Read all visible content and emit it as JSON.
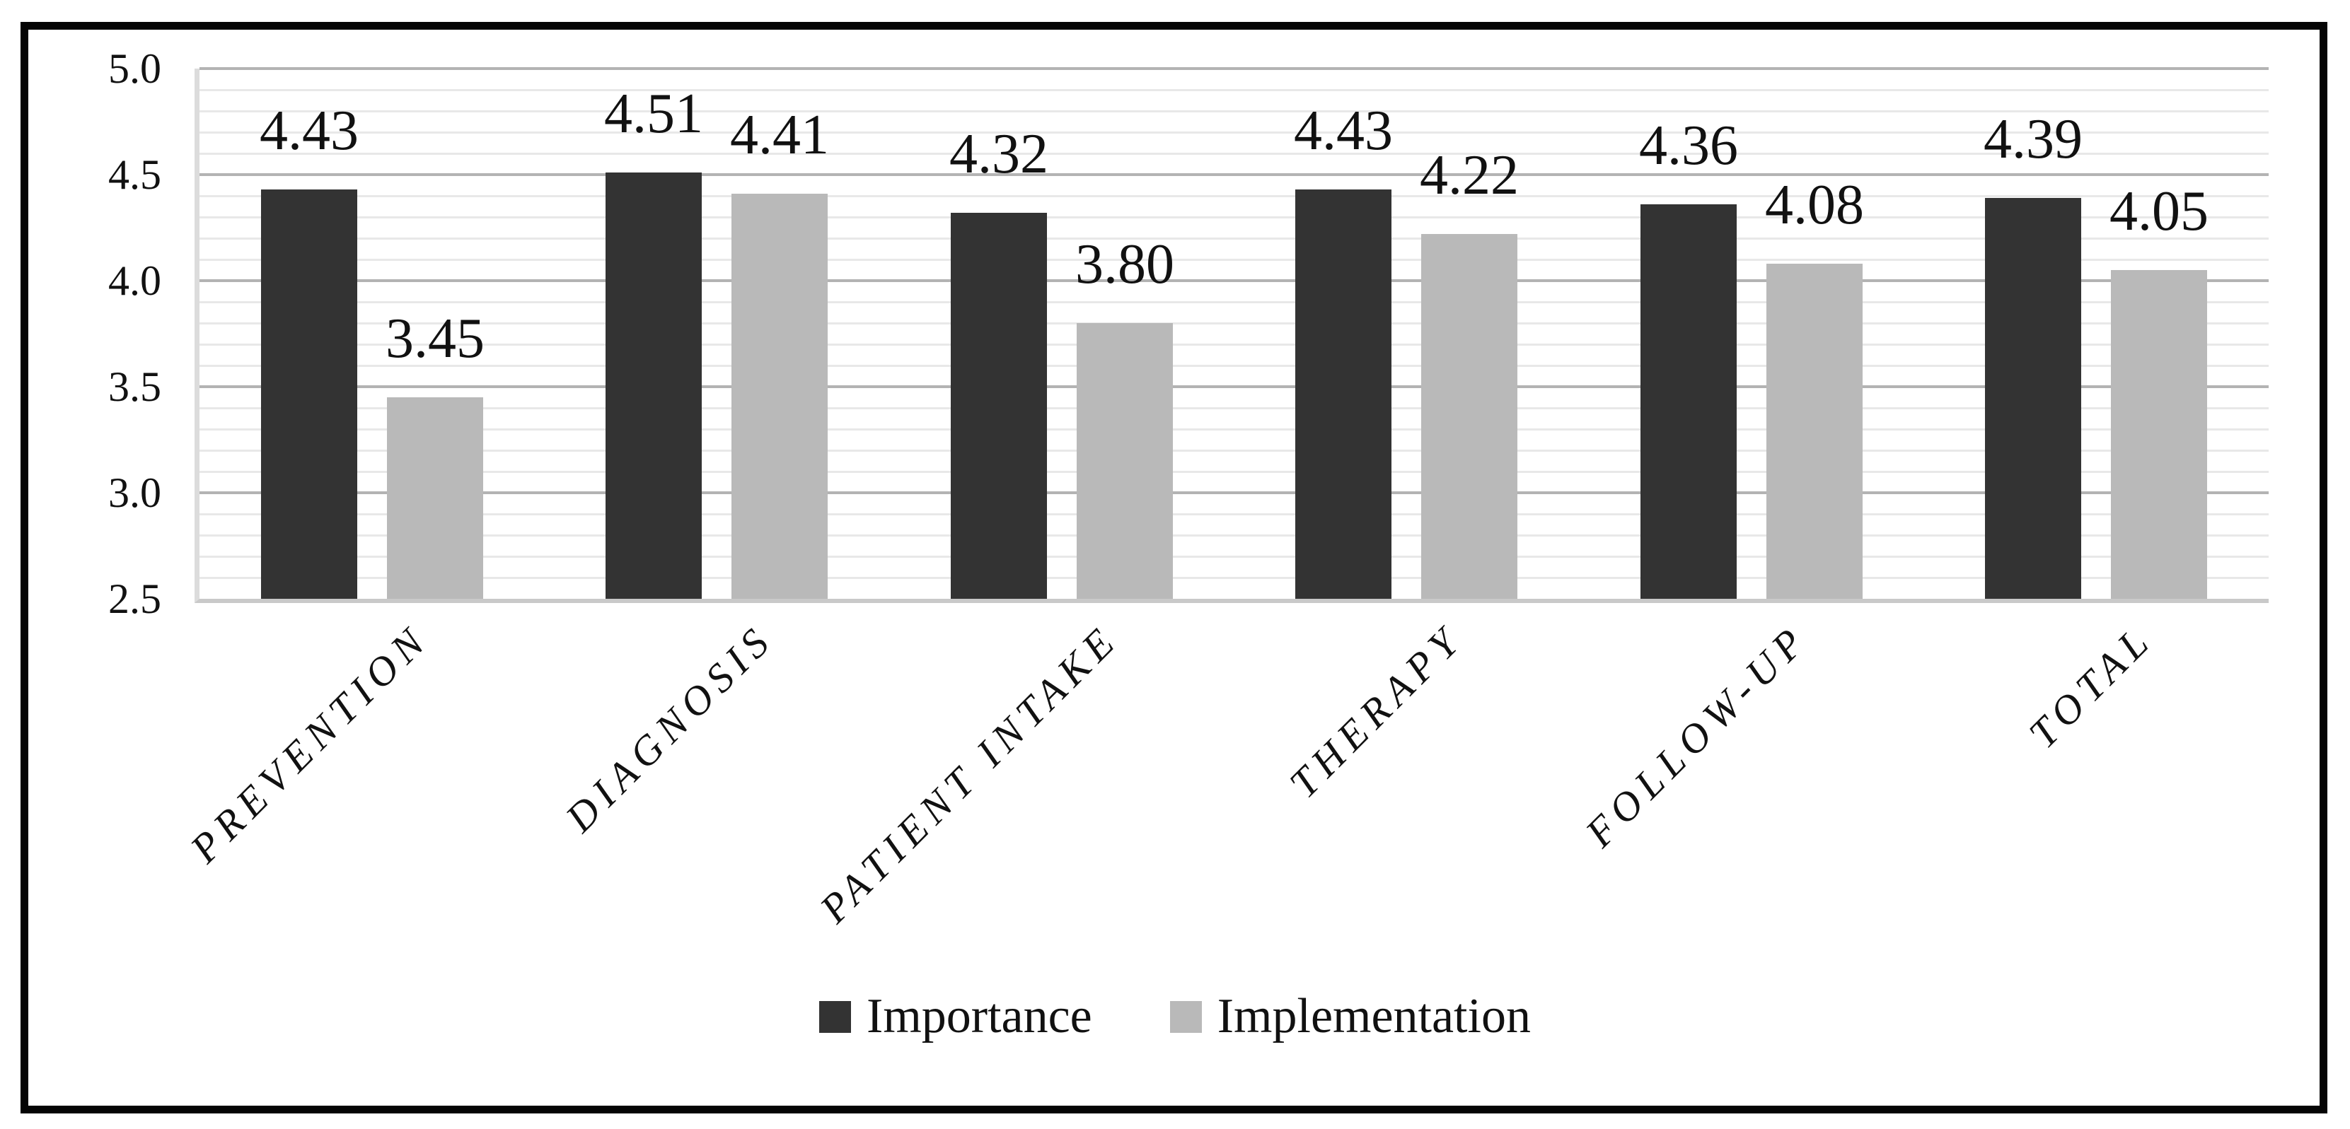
{
  "chart_data": {
    "type": "bar",
    "title": "",
    "categories": [
      "PREVENTION",
      "DIAGNOSIS",
      "PATIENT INTAKE",
      "THERAPY",
      "FOLLOW-UP",
      "TOTAL"
    ],
    "series": [
      {
        "name": "Importance",
        "color": "#333333",
        "values": [
          4.43,
          4.51,
          4.32,
          4.43,
          4.36,
          4.39
        ],
        "labels": [
          "4.43",
          "4.51",
          "4.32",
          "4.43",
          "4.36",
          "4.39"
        ]
      },
      {
        "name": "Implementation",
        "color": "#b9b9b9",
        "values": [
          3.45,
          4.41,
          3.8,
          4.22,
          4.08,
          4.05
        ],
        "labels": [
          "3.45",
          "4.41",
          "3.80",
          "4.22",
          "4.08",
          "4.05"
        ]
      }
    ],
    "y_axis": {
      "min": 2.5,
      "max": 5.0,
      "major_step": 0.5,
      "minor_step": 0.1,
      "tick_labels": [
        "5.0",
        "4.5",
        "4.0",
        "3.5",
        "3.0",
        "2.5"
      ]
    },
    "grid": {
      "major_gridlines": true,
      "minor_gridlines": true,
      "major_color": "#b3b3b3",
      "minor_color": "#e8e8e8"
    },
    "legend": {
      "position": "bottom",
      "items": [
        "Importance",
        "Implementation"
      ]
    }
  }
}
